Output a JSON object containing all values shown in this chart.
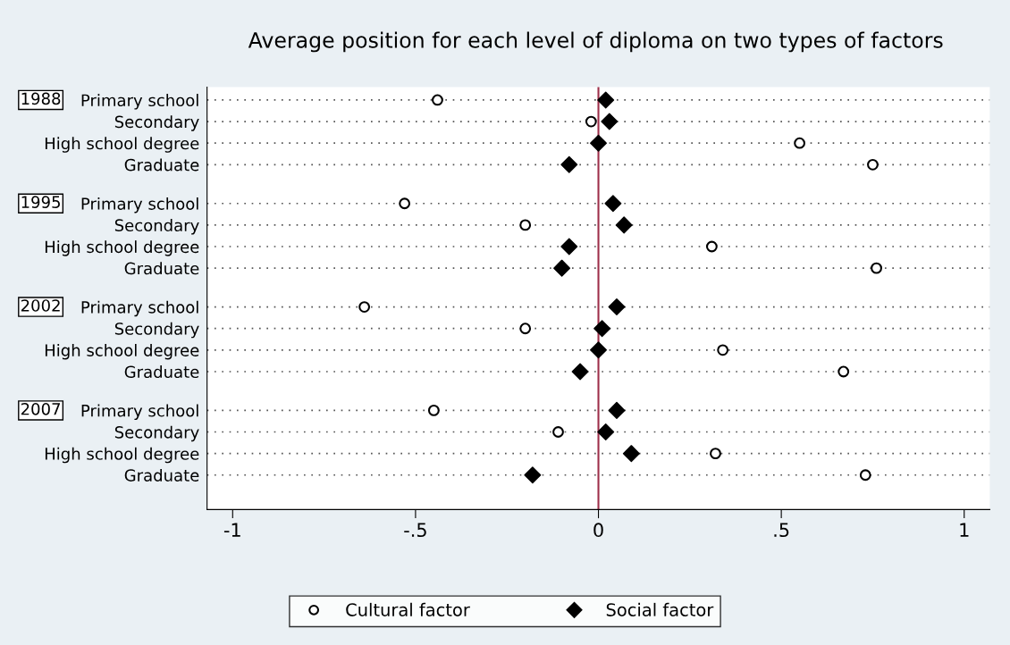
{
  "chart_data": {
    "type": "scatter",
    "title": "Average position for each level of diploma on two types of factors",
    "categories": [
      "Primary school",
      "Secondary",
      "High school degree",
      "Graduate",
      "Primary school",
      "Secondary",
      "High school degree",
      "Graduate",
      "Primary school",
      "Secondary",
      "High school degree",
      "Graduate",
      "Primary school",
      "Secondary",
      "High school degree",
      "Graduate"
    ],
    "orientation": "horizontal",
    "series": [
      {
        "name": "Cultural factor",
        "color": "#000000",
        "marker": "circle",
        "values": [
          -0.44,
          -0.02,
          0.55,
          0.75,
          -0.53,
          -0.2,
          0.31,
          0.76,
          -0.64,
          -0.2,
          0.34,
          0.67,
          -0.45,
          -0.11,
          0.32,
          0.73
        ]
      },
      {
        "name": "Social factor",
        "color": "#000000",
        "marker": "diamond",
        "values": [
          0.02,
          0.03,
          0.0,
          -0.08,
          0.04,
          0.07,
          -0.08,
          -0.1,
          0.05,
          0.01,
          0.0,
          -0.05,
          0.05,
          0.02,
          0.09,
          -0.18
        ]
      }
    ],
    "annotations": [
      "1988",
      "1995",
      "2002",
      "2007"
    ],
    "xlim": [
      -1.07,
      1.07
    ],
    "xticks": [
      {
        "value": -1,
        "label": "-1"
      },
      {
        "value": -0.5,
        "label": "-.5"
      },
      0,
      {
        "value": 0.5,
        "label": ".5"
      },
      1
    ],
    "ref_lines": [
      {
        "axis": "x",
        "value": 0,
        "label": null,
        "color": "#9e2f4a"
      }
    ],
    "grid": "y",
    "legend": "bottom"
  }
}
